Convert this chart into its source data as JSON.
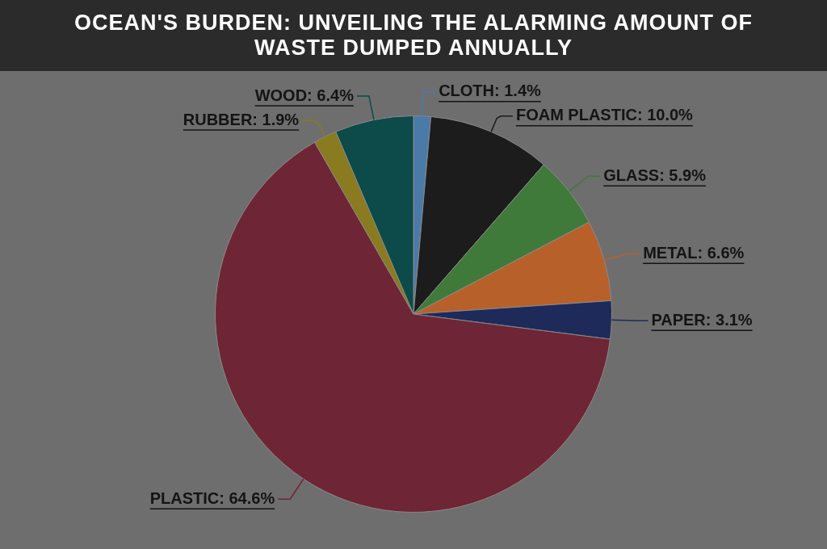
{
  "chart_data": {
    "type": "pie",
    "title": "OCEAN'S BURDEN: UNVEILING THE ALARMING AMOUNT OF WASTE DUMPED ANNUALLY",
    "categories": [
      "CLOTH",
      "FOAM PLASTIC",
      "GLASS",
      "METAL",
      "PAPER",
      "PLASTIC",
      "RUBBER",
      "WOOD"
    ],
    "values": [
      1.4,
      10.0,
      5.9,
      6.6,
      3.1,
      64.6,
      1.9,
      6.4
    ],
    "value_labels": [
      "1.4%",
      "10.0%",
      "5.9%",
      "6.6%",
      "3.1%",
      "64.6%",
      "1.9%",
      "6.4%"
    ],
    "colors": [
      "#4a7aa8",
      "#1c1c1c",
      "#3f7a3a",
      "#b8602a",
      "#1e2a5a",
      "#6e2535",
      "#8a7a20",
      "#0d4a4a"
    ]
  }
}
